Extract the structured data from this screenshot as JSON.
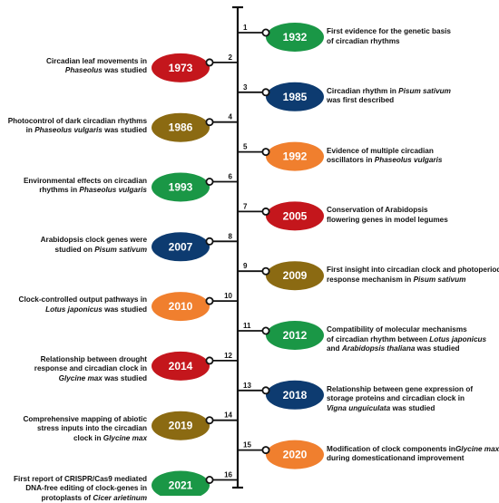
{
  "colors": {
    "green": "#1a9746",
    "red": "#c4161c",
    "navy": "#0d3b70",
    "brown": "#8b6a12",
    "orange": "#f07f2e"
  },
  "events": [
    {
      "num": "1",
      "year": "1932",
      "side": "right",
      "color": "green",
      "segments": [
        [
          "First evidence for the genetic basis",
          ""
        ],
        [
          "of circadian rhythms",
          ""
        ]
      ]
    },
    {
      "num": "2",
      "year": "1973",
      "side": "left",
      "color": "red",
      "segments": [
        [
          "Circadian leaf movements in",
          ""
        ],
        [
          "",
          "Phaseolus"
        ],
        [
          " was studied",
          ""
        ]
      ]
    },
    {
      "num": "3",
      "year": "1985",
      "side": "right",
      "color": "navy",
      "segments": [
        [
          "Circadian rhythm in ",
          ""
        ],
        [
          "",
          "Pisum sativum"
        ],
        [
          "was first described",
          ""
        ]
      ]
    },
    {
      "num": "4",
      "year": "1986",
      "side": "left",
      "color": "brown",
      "segments": [
        [
          "Photocontrol of dark circadian rhythms",
          ""
        ],
        [
          "in ",
          ""
        ],
        [
          "",
          "Phaseolus vulgaris"
        ],
        [
          " was studied",
          ""
        ]
      ]
    },
    {
      "num": "5",
      "year": "1992",
      "side": "right",
      "color": "orange",
      "segments": [
        [
          "Evidence of multiple circadian",
          ""
        ],
        [
          "oscillators in ",
          ""
        ],
        [
          "",
          "Phaseolus vulgaris"
        ]
      ]
    },
    {
      "num": "6",
      "year": "1993",
      "side": "left",
      "color": "green",
      "segments": [
        [
          "Environmental effects on circadian",
          ""
        ],
        [
          "rhythms in ",
          ""
        ],
        [
          "",
          "Phaseolus vulgaris"
        ]
      ]
    },
    {
      "num": "7",
      "year": "2005",
      "side": "right",
      "color": "red",
      "segments": [
        [
          "Conservation of Arabidopsis",
          ""
        ],
        [
          "flowering genes in model legumes",
          ""
        ]
      ]
    },
    {
      "num": "8",
      "year": "2007",
      "side": "left",
      "color": "navy",
      "segments": [
        [
          "Arabidopsis clock genes were",
          ""
        ],
        [
          "studied on ",
          ""
        ],
        [
          "",
          "Pisum sativum"
        ]
      ]
    },
    {
      "num": "9",
      "year": "2009",
      "side": "right",
      "color": "brown",
      "segments": [
        [
          "First insight into circadian clock and photoperiod",
          ""
        ],
        [
          "response mechanism in ",
          ""
        ],
        [
          "",
          "Pisum sativum"
        ]
      ]
    },
    {
      "num": "10",
      "year": "2010",
      "side": "left",
      "color": "orange",
      "segments": [
        [
          "Clock-controlled output pathways in",
          ""
        ],
        [
          "",
          "Lotus japonicus"
        ],
        [
          " was studied",
          ""
        ]
      ]
    },
    {
      "num": "11",
      "year": "2012",
      "side": "right",
      "color": "green",
      "segments": [
        [
          "Compatibility of molecular mechanisms",
          ""
        ],
        [
          "of circadian rhythm between ",
          ""
        ],
        [
          "",
          "Lotus japonicus"
        ],
        [
          "and ",
          ""
        ],
        [
          "",
          "Arabidopsis thaliana"
        ],
        [
          " was studied",
          ""
        ]
      ]
    },
    {
      "num": "12",
      "year": "2014",
      "side": "left",
      "color": "red",
      "segments": [
        [
          "Relationship between drought",
          ""
        ],
        [
          "response and circadian clock in",
          ""
        ],
        [
          "",
          "Glycine max"
        ],
        [
          " was studied",
          ""
        ]
      ]
    },
    {
      "num": "13",
      "year": "2018",
      "side": "right",
      "color": "navy",
      "segments": [
        [
          "Relationship between gene expression of",
          ""
        ],
        [
          "storage proteins and circadian clock in",
          ""
        ],
        [
          "",
          "Vigna unguiculata"
        ],
        [
          " was studied",
          ""
        ]
      ]
    },
    {
      "num": "14",
      "year": "2019",
      "side": "left",
      "color": "brown",
      "segments": [
        [
          "Comprehensive mapping of abiotic",
          ""
        ],
        [
          "stress inputs into the circadian",
          ""
        ],
        [
          "clock in ",
          ""
        ],
        [
          "",
          "Glycine max"
        ]
      ]
    },
    {
      "num": "15",
      "year": "2020",
      "side": "right",
      "color": "orange",
      "segments": [
        [
          "Modification of clock components in",
          ""
        ],
        [
          "",
          "Glycine max"
        ],
        [
          " during domestication",
          ""
        ],
        [
          "and improvement",
          ""
        ]
      ]
    },
    {
      "num": "16",
      "year": "2021",
      "side": "left",
      "color": "green",
      "segments": [
        [
          "First report of CRISPR/Cas9 mediated",
          ""
        ],
        [
          "DNA-free editing of clock-genes in",
          ""
        ],
        [
          "protoplasts of ",
          ""
        ],
        [
          "",
          "Cicer arietinum"
        ]
      ]
    }
  ]
}
